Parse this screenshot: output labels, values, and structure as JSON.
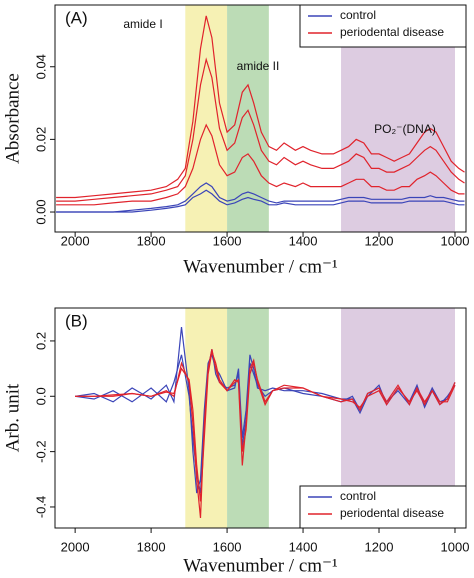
{
  "chart_data": [
    {
      "type": "line",
      "panel_label": "(A)",
      "x_label": "Wavenumber / cm⁻¹",
      "y_label": "Absorbance",
      "xlim": [
        2053,
        971
      ],
      "xticks": [
        2000,
        1800,
        1600,
        1400,
        1200,
        1000
      ],
      "ylim": [
        -0.0055,
        0.057
      ],
      "yticks": [
        {
          "value": 0,
          "label": "0.00"
        },
        0.02,
        0.04
      ],
      "legend": "top-right",
      "bands": [
        {
          "label": "amide I",
          "range": [
            1710,
            1600
          ],
          "color": "#f6f1b4"
        },
        {
          "label": "amide II",
          "range": [
            1600,
            1490
          ],
          "color": "#bcdcb6"
        },
        {
          "label": "PO₂⁻(DNA)",
          "range": [
            1300,
            1000
          ],
          "color": "#ddcce1"
        }
      ],
      "x": [
        2050,
        2000,
        1950,
        1900,
        1850,
        1800,
        1760,
        1730,
        1710,
        1690,
        1670,
        1655,
        1640,
        1620,
        1600,
        1580,
        1560,
        1545,
        1530,
        1510,
        1490,
        1470,
        1450,
        1420,
        1400,
        1380,
        1350,
        1320,
        1300,
        1280,
        1260,
        1240,
        1220,
        1200,
        1180,
        1160,
        1140,
        1120,
        1100,
        1080,
        1065,
        1050,
        1030,
        1010,
        990,
        975
      ],
      "groups": [
        {
          "name": "control",
          "color": "#3b45b8",
          "spectra": [
            [
              0,
              0,
              0,
              0,
              0.0005,
              0.001,
              0.0015,
              0.002,
              0.003,
              0.005,
              0.007,
              0.008,
              0.007,
              0.004,
              0.003,
              0.0035,
              0.005,
              0.0055,
              0.005,
              0.004,
              0.003,
              0.0025,
              0.003,
              0.003,
              0.003,
              0.003,
              0.003,
              0.003,
              0.0035,
              0.004,
              0.004,
              0.004,
              0.0035,
              0.0035,
              0.0035,
              0.0035,
              0.0035,
              0.004,
              0.004,
              0.004,
              0.0045,
              0.004,
              0.004,
              0.0035,
              0.003,
              0.003
            ],
            [
              0,
              0,
              0,
              0,
              0,
              0.0005,
              0.001,
              0.0015,
              0.002,
              0.004,
              0.005,
              0.006,
              0.005,
              0.003,
              0.002,
              0.0025,
              0.0035,
              0.004,
              0.0035,
              0.003,
              0.002,
              0.002,
              0.0025,
              0.002,
              0.002,
              0.002,
              0.002,
              0.002,
              0.0025,
              0.003,
              0.003,
              0.003,
              0.0025,
              0.0025,
              0.0025,
              0.0025,
              0.0025,
              0.003,
              0.003,
              0.003,
              0.003,
              0.003,
              0.003,
              0.0025,
              0.002,
              0.002
            ]
          ]
        },
        {
          "name": "periodental disease",
          "color": "#e0232c",
          "spectra": [
            [
              0.004,
              0.004,
              0.0045,
              0.005,
              0.0055,
              0.006,
              0.007,
              0.009,
              0.012,
              0.025,
              0.045,
              0.054,
              0.048,
              0.03,
              0.022,
              0.024,
              0.033,
              0.035,
              0.03,
              0.022,
              0.018,
              0.017,
              0.019,
              0.017,
              0.018,
              0.017,
              0.016,
              0.016,
              0.017,
              0.018,
              0.02,
              0.019,
              0.016,
              0.016,
              0.015,
              0.014,
              0.015,
              0.016,
              0.019,
              0.022,
              0.023,
              0.022,
              0.018,
              0.014,
              0.012,
              0.011
            ],
            [
              0.003,
              0.003,
              0.0035,
              0.004,
              0.0045,
              0.005,
              0.006,
              0.007,
              0.01,
              0.02,
              0.035,
              0.042,
              0.037,
              0.023,
              0.017,
              0.019,
              0.026,
              0.028,
              0.024,
              0.017,
              0.014,
              0.013,
              0.015,
              0.013,
              0.014,
              0.013,
              0.012,
              0.012,
              0.013,
              0.014,
              0.016,
              0.015,
              0.012,
              0.012,
              0.011,
              0.011,
              0.012,
              0.013,
              0.015,
              0.017,
              0.018,
              0.017,
              0.014,
              0.011,
              0.009,
              0.008
            ],
            [
              0.002,
              0.002,
              0.002,
              0.0025,
              0.003,
              0.003,
              0.004,
              0.005,
              0.007,
              0.012,
              0.02,
              0.024,
              0.021,
              0.013,
              0.01,
              0.011,
              0.015,
              0.016,
              0.014,
              0.01,
              0.008,
              0.007,
              0.008,
              0.007,
              0.008,
              0.007,
              0.007,
              0.007,
              0.007,
              0.008,
              0.009,
              0.009,
              0.007,
              0.007,
              0.006,
              0.006,
              0.007,
              0.007,
              0.009,
              0.01,
              0.011,
              0.01,
              0.008,
              0.006,
              0.005,
              0.005
            ]
          ]
        }
      ]
    },
    {
      "type": "line",
      "panel_label": "(B)",
      "x_label": "Wavenumber / cm⁻¹",
      "y_label": "Arb. unit",
      "xlim": [
        2053,
        971
      ],
      "xticks": [
        2000,
        1800,
        1600,
        1400,
        1200,
        1000
      ],
      "ylim": [
        -0.476,
        0.319
      ],
      "yticks": [
        -0.4,
        -0.2,
        {
          "value": 0,
          "label": "0.0"
        },
        0.2
      ],
      "legend": "bottom-right",
      "bands": [
        {
          "range": [
            1710,
            1600
          ],
          "color": "#f6f1b4"
        },
        {
          "range": [
            1600,
            1490
          ],
          "color": "#bcdcb6"
        },
        {
          "range": [
            1300,
            1000
          ],
          "color": "#ddcce1"
        }
      ],
      "x": [
        2000,
        1950,
        1900,
        1850,
        1800,
        1760,
        1740,
        1720,
        1700,
        1690,
        1680,
        1670,
        1660,
        1650,
        1640,
        1630,
        1620,
        1600,
        1580,
        1570,
        1560,
        1550,
        1540,
        1530,
        1520,
        1500,
        1480,
        1450,
        1400,
        1350,
        1300,
        1270,
        1250,
        1230,
        1200,
        1180,
        1150,
        1120,
        1100,
        1080,
        1060,
        1040,
        1020,
        1000
      ],
      "groups": [
        {
          "name": "control",
          "color": "#3b45b8",
          "spectra": [
            [
              0,
              0.01,
              -0.02,
              0.03,
              -0.01,
              0.04,
              -0.02,
              0.25,
              0.02,
              -0.2,
              -0.35,
              -0.3,
              -0.05,
              0.12,
              0.15,
              0.1,
              0.08,
              0.02,
              0.03,
              0.1,
              -0.15,
              -0.05,
              0.15,
              0.1,
              0.03,
              0.02,
              0.03,
              0.02,
              0.02,
              0.01,
              -0.01,
              -0.01,
              -0.06,
              0,
              0.04,
              -0.03,
              0.03,
              -0.02,
              0.04,
              -0.04,
              0.02,
              -0.03,
              0,
              0.04
            ],
            [
              0,
              -0.01,
              0.02,
              -0.02,
              0.03,
              -0.02,
              0.05,
              0.15,
              0,
              -0.15,
              -0.28,
              -0.35,
              -0.08,
              0.1,
              0.17,
              0.08,
              0.05,
              0.03,
              0.04,
              0.08,
              -0.18,
              -0.08,
              0.12,
              0.08,
              0.04,
              0,
              0.02,
              0.03,
              0.01,
              0,
              -0.02,
              0,
              -0.05,
              0.01,
              0.03,
              -0.02,
              0.02,
              -0.03,
              0.03,
              -0.03,
              0.03,
              -0.02,
              -0.01,
              0.05
            ]
          ]
        },
        {
          "name": "periodental disease",
          "color": "#e0232c",
          "spectra": [
            [
              0,
              0,
              0,
              0.01,
              0,
              0.02,
              0,
              0.12,
              0.05,
              -0.1,
              -0.3,
              -0.44,
              -0.1,
              0.1,
              0.17,
              0.1,
              0.05,
              0.02,
              0.06,
              0.05,
              -0.25,
              -0.1,
              0.1,
              0.13,
              0.05,
              -0.03,
              0.02,
              0.04,
              0.03,
              0,
              -0.02,
              -0.01,
              -0.05,
              0.01,
              0.03,
              -0.02,
              0.04,
              -0.03,
              0.03,
              -0.02,
              0.02,
              -0.03,
              -0.01,
              0.05
            ],
            [
              0,
              0,
              0.005,
              0.01,
              0,
              0.015,
              0.01,
              0.1,
              0.06,
              -0.05,
              -0.25,
              -0.38,
              -0.15,
              0.08,
              0.16,
              0.12,
              0.06,
              0.02,
              0.05,
              0.06,
              -0.2,
              -0.12,
              0.08,
              0.12,
              0.06,
              -0.02,
              0.02,
              0.03,
              0.03,
              0,
              -0.01,
              -0.02,
              -0.04,
              0,
              0.02,
              -0.03,
              0.03,
              -0.02,
              0.02,
              -0.03,
              0.02,
              -0.02,
              -0.02,
              0.04
            ]
          ]
        }
      ]
    }
  ]
}
